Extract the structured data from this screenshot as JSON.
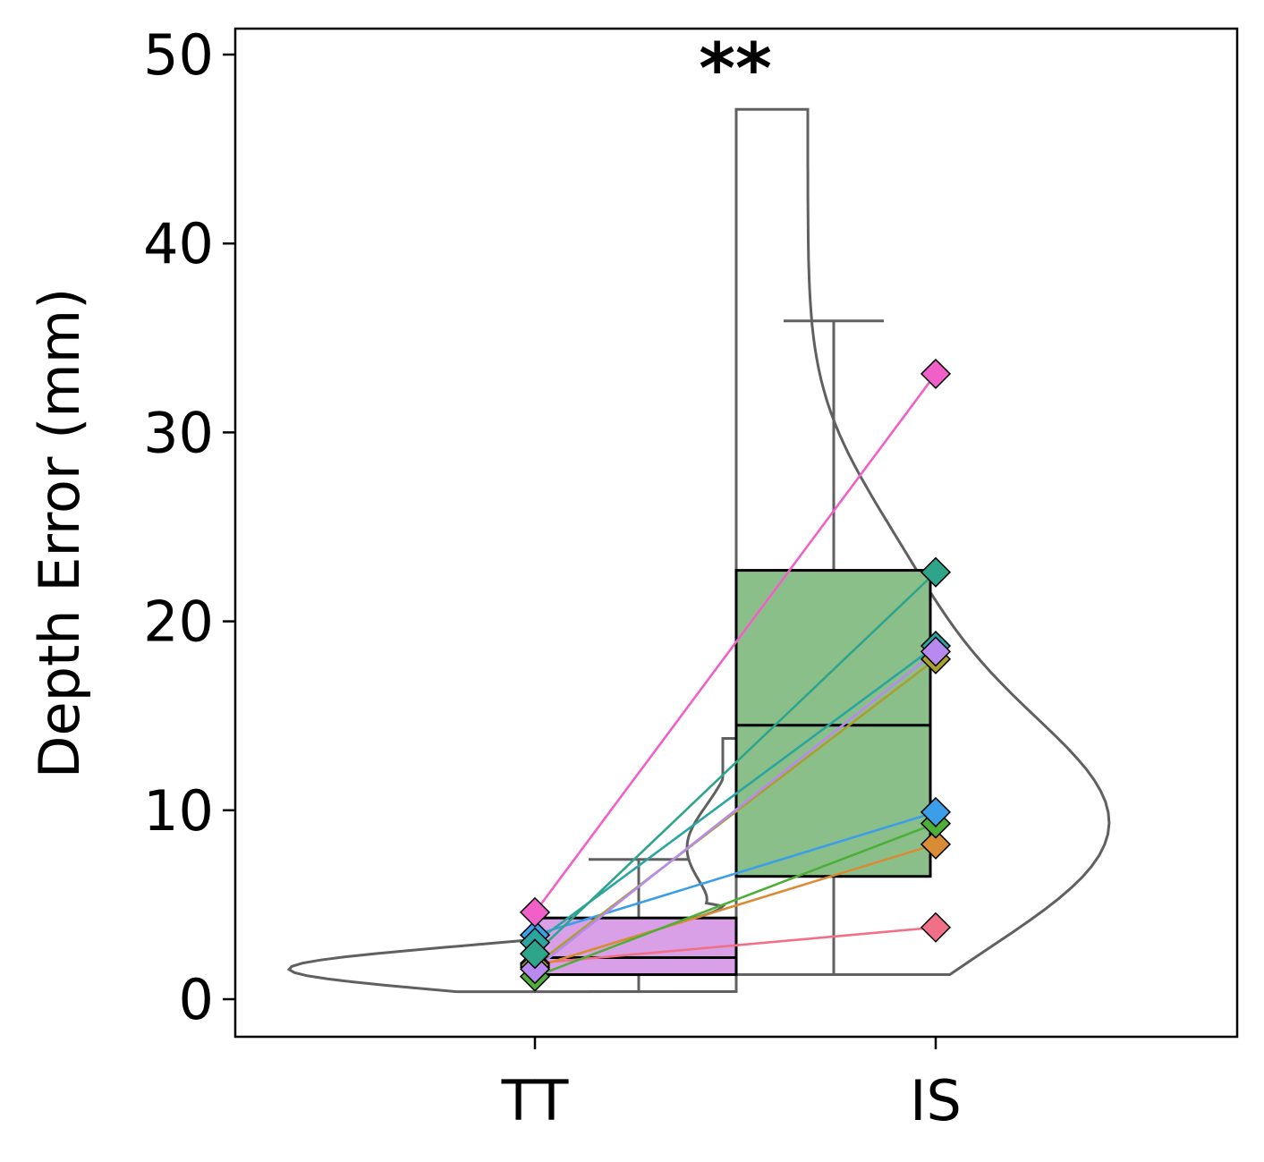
{
  "chart_data": {
    "type": "raincloud",
    "ylabel": "Depth Error (mm)",
    "ylim": [
      -2,
      51.5
    ],
    "yticks": [
      0,
      10,
      20,
      30,
      40,
      50
    ],
    "categories": [
      "TT",
      "IS"
    ],
    "significance": "**",
    "grid": false,
    "groups": [
      {
        "name": "TT",
        "box": {
          "q1": 1.3,
          "median": 2.2,
          "q3": 4.3,
          "whisker_low": 0.4,
          "whisker_high": 7.4
        },
        "box_color": "#d9a0e8",
        "violin_side": "left",
        "violin_min": 0.4,
        "violin_max": 13.8
      },
      {
        "name": "IS",
        "box": {
          "q1": 6.5,
          "median": 14.5,
          "q3": 22.7,
          "whisker_low": 1.3,
          "whisker_high": 35.9
        },
        "box_color": "#8bbf8a",
        "violin_side": "right",
        "violin_min": 1.3,
        "violin_max": 47.1
      }
    ],
    "paired_points": [
      {
        "TT": 1.9,
        "IS": 3.8,
        "color": "#f07088"
      },
      {
        "TT": 1.7,
        "IS": 8.2,
        "color": "#d98b35"
      },
      {
        "TT": 1.2,
        "IS": 9.3,
        "color": "#4caf38"
      },
      {
        "TT": 3.4,
        "IS": 9.9,
        "color": "#3a9ee8"
      },
      {
        "TT": 1.8,
        "IS": 18.0,
        "color": "#a8a030"
      },
      {
        "TT": 3.0,
        "IS": 18.7,
        "color": "#2aa5a0"
      },
      {
        "TT": 1.6,
        "IS": 18.4,
        "color": "#b88af0"
      },
      {
        "TT": 2.4,
        "IS": 22.6,
        "color": "#2ea58a"
      },
      {
        "TT": 4.6,
        "IS": 33.1,
        "color": "#f060c8"
      }
    ]
  }
}
